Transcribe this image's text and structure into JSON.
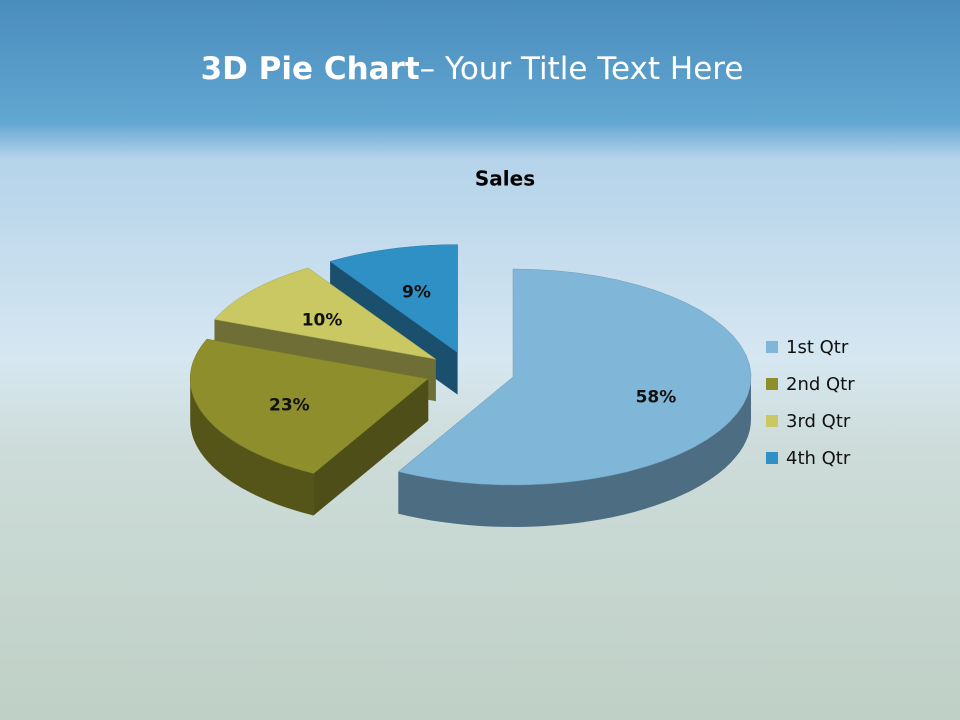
{
  "slide": {
    "title_bold": "3D Pie Chart",
    "title_rest": "– Your Title Text Here"
  },
  "chart_data": {
    "type": "pie",
    "title": "Sales",
    "categories": [
      "1st Qtr",
      "2nd Qtr",
      "3rd Qtr",
      "4th Qtr"
    ],
    "values": [
      58,
      23,
      10,
      9
    ],
    "value_labels": [
      "58%",
      "23%",
      "10%",
      "9%"
    ],
    "colors": [
      "#80b6d8",
      "#8e8e2c",
      "#c9c862",
      "#2f90c6"
    ],
    "legend": "right"
  }
}
